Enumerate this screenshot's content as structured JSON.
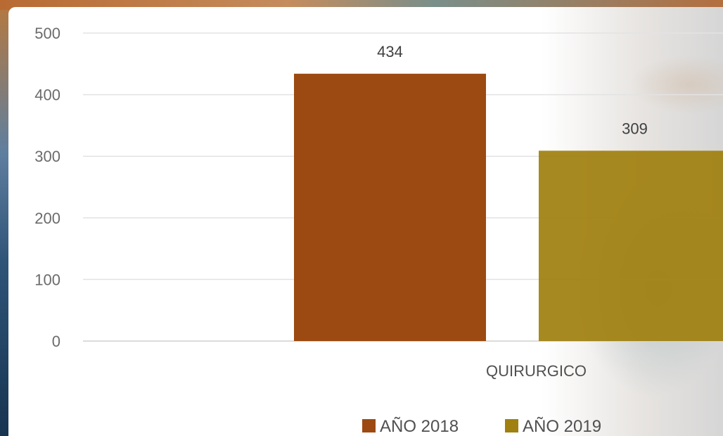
{
  "chart_data": {
    "type": "bar",
    "categories": [
      "QUIRURGICO"
    ],
    "series": [
      {
        "name": "AÑO 2018",
        "values": [
          434
        ],
        "color": "#9c4a12"
      },
      {
        "name": "AÑO 2019",
        "values": [
          309
        ],
        "color": "#a08010"
      }
    ],
    "ylim": [
      0,
      500
    ],
    "yticks": [
      0,
      100,
      200,
      300,
      400,
      500
    ],
    "grid": true,
    "legend": "bottom",
    "title": "",
    "xlabel": "",
    "ylabel": ""
  }
}
